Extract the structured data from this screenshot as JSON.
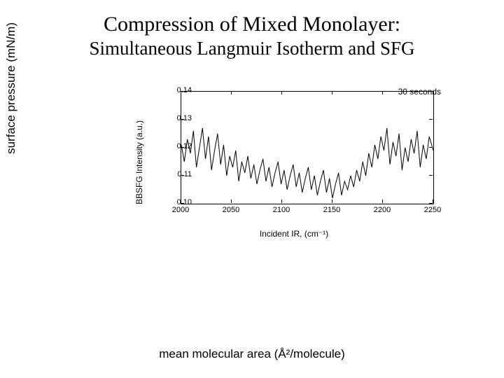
{
  "title": {
    "line1": "Compression of Mixed Monolayer:",
    "line2": "Simultaneous Langmuir Isotherm and SFG"
  },
  "outer_axes": {
    "ylabel": "surface pressure (mN/m)",
    "xlabel": "mean molecular area (Å²/molecule)"
  },
  "sfg_chart": {
    "type": "line",
    "annotation": "30 seconds",
    "ylabel": "BBSFG Intensity (a.u.)",
    "xlabel": "Incident IR, (cm⁻¹)",
    "xlim": [
      2000,
      2250
    ],
    "ylim": [
      0.1,
      0.14
    ],
    "xticks": [
      2000,
      2050,
      2100,
      2150,
      2200,
      2250
    ],
    "yticks": [
      0.1,
      0.11,
      0.12,
      0.13,
      0.14
    ],
    "ytick_labels": [
      "0.10",
      "0.11",
      "0.12",
      "0.13",
      "0.14"
    ],
    "line_color": "#000000",
    "line_width": 1,
    "background_color": "#ffffff",
    "axis_color": "#000000",
    "tick_fontsize": 11,
    "label_fontsize": 12,
    "series": [
      {
        "x": 2000,
        "y": 0.121
      },
      {
        "x": 2003,
        "y": 0.115
      },
      {
        "x": 2006,
        "y": 0.123
      },
      {
        "x": 2009,
        "y": 0.118
      },
      {
        "x": 2012,
        "y": 0.126
      },
      {
        "x": 2015,
        "y": 0.113
      },
      {
        "x": 2018,
        "y": 0.12
      },
      {
        "x": 2021,
        "y": 0.127
      },
      {
        "x": 2024,
        "y": 0.116
      },
      {
        "x": 2027,
        "y": 0.124
      },
      {
        "x": 2030,
        "y": 0.112
      },
      {
        "x": 2033,
        "y": 0.119
      },
      {
        "x": 2036,
        "y": 0.125
      },
      {
        "x": 2039,
        "y": 0.114
      },
      {
        "x": 2042,
        "y": 0.121
      },
      {
        "x": 2045,
        "y": 0.11
      },
      {
        "x": 2048,
        "y": 0.117
      },
      {
        "x": 2051,
        "y": 0.113
      },
      {
        "x": 2054,
        "y": 0.119
      },
      {
        "x": 2057,
        "y": 0.108
      },
      {
        "x": 2060,
        "y": 0.115
      },
      {
        "x": 2063,
        "y": 0.111
      },
      {
        "x": 2066,
        "y": 0.117
      },
      {
        "x": 2069,
        "y": 0.109
      },
      {
        "x": 2072,
        "y": 0.114
      },
      {
        "x": 2075,
        "y": 0.107
      },
      {
        "x": 2078,
        "y": 0.112
      },
      {
        "x": 2081,
        "y": 0.116
      },
      {
        "x": 2084,
        "y": 0.108
      },
      {
        "x": 2087,
        "y": 0.113
      },
      {
        "x": 2090,
        "y": 0.106
      },
      {
        "x": 2093,
        "y": 0.111
      },
      {
        "x": 2096,
        "y": 0.115
      },
      {
        "x": 2099,
        "y": 0.107
      },
      {
        "x": 2102,
        "y": 0.112
      },
      {
        "x": 2105,
        "y": 0.105
      },
      {
        "x": 2108,
        "y": 0.11
      },
      {
        "x": 2111,
        "y": 0.114
      },
      {
        "x": 2114,
        "y": 0.106
      },
      {
        "x": 2117,
        "y": 0.111
      },
      {
        "x": 2120,
        "y": 0.104
      },
      {
        "x": 2123,
        "y": 0.109
      },
      {
        "x": 2126,
        "y": 0.113
      },
      {
        "x": 2129,
        "y": 0.105
      },
      {
        "x": 2132,
        "y": 0.11
      },
      {
        "x": 2135,
        "y": 0.103
      },
      {
        "x": 2138,
        "y": 0.108
      },
      {
        "x": 2141,
        "y": 0.112
      },
      {
        "x": 2144,
        "y": 0.104
      },
      {
        "x": 2147,
        "y": 0.109
      },
      {
        "x": 2150,
        "y": 0.102
      },
      {
        "x": 2153,
        "y": 0.107
      },
      {
        "x": 2156,
        "y": 0.111
      },
      {
        "x": 2159,
        "y": 0.103
      },
      {
        "x": 2162,
        "y": 0.108
      },
      {
        "x": 2165,
        "y": 0.105
      },
      {
        "x": 2168,
        "y": 0.11
      },
      {
        "x": 2171,
        "y": 0.106
      },
      {
        "x": 2174,
        "y": 0.112
      },
      {
        "x": 2177,
        "y": 0.108
      },
      {
        "x": 2180,
        "y": 0.115
      },
      {
        "x": 2183,
        "y": 0.11
      },
      {
        "x": 2186,
        "y": 0.118
      },
      {
        "x": 2189,
        "y": 0.113
      },
      {
        "x": 2192,
        "y": 0.121
      },
      {
        "x": 2195,
        "y": 0.116
      },
      {
        "x": 2198,
        "y": 0.124
      },
      {
        "x": 2201,
        "y": 0.119
      },
      {
        "x": 2204,
        "y": 0.127
      },
      {
        "x": 2207,
        "y": 0.114
      },
      {
        "x": 2210,
        "y": 0.122
      },
      {
        "x": 2213,
        "y": 0.117
      },
      {
        "x": 2216,
        "y": 0.125
      },
      {
        "x": 2219,
        "y": 0.112
      },
      {
        "x": 2222,
        "y": 0.12
      },
      {
        "x": 2225,
        "y": 0.115
      },
      {
        "x": 2228,
        "y": 0.123
      },
      {
        "x": 2231,
        "y": 0.118
      },
      {
        "x": 2234,
        "y": 0.126
      },
      {
        "x": 2237,
        "y": 0.113
      },
      {
        "x": 2240,
        "y": 0.121
      },
      {
        "x": 2243,
        "y": 0.116
      },
      {
        "x": 2246,
        "y": 0.124
      },
      {
        "x": 2250,
        "y": 0.119
      }
    ]
  }
}
